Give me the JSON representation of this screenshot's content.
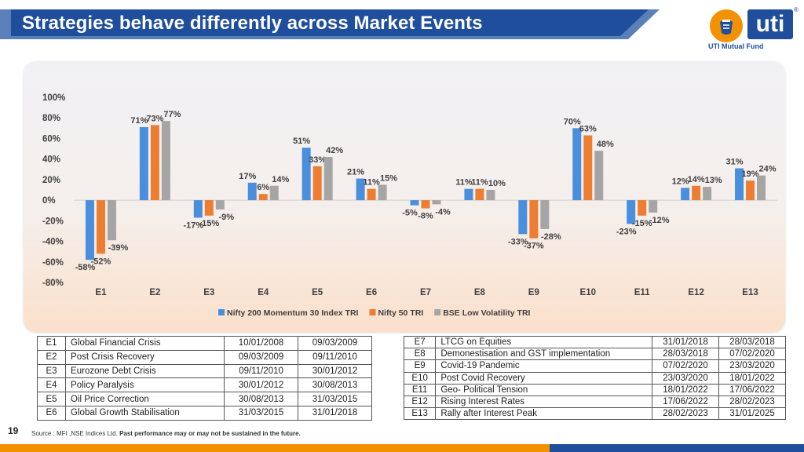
{
  "header": {
    "title": "Strategies behave differently across Market Events"
  },
  "logo": {
    "brand": "uti",
    "registered": "®",
    "name": "UTI Mutual Fund"
  },
  "colors": {
    "title_bar": "#1f4e9c",
    "series_1": "#4a8fdd",
    "series_2": "#ed7d31",
    "series_3": "#a5a5a5",
    "accent_orange": "#f39200"
  },
  "chart_data": {
    "type": "bar",
    "categories": [
      "E1",
      "E2",
      "E3",
      "E4",
      "E5",
      "E6",
      "E7",
      "E8",
      "E9",
      "E10",
      "E11",
      "E12",
      "E13"
    ],
    "series": [
      {
        "name": "Nifty 200 Momentum 30 Index TRI",
        "values": [
          -58,
          71,
          -17,
          17,
          51,
          21,
          -5,
          11,
          -33,
          70,
          -23,
          12,
          31
        ]
      },
      {
        "name": "Nifty 50 TRI",
        "values": [
          -52,
          73,
          -15,
          6,
          33,
          11,
          -8,
          11,
          -37,
          63,
          -15,
          14,
          19
        ]
      },
      {
        "name": "BSE Low Volatility TRI",
        "values": [
          -39,
          77,
          -9,
          14,
          42,
          15,
          -4,
          10,
          -28,
          48,
          -12,
          13,
          24
        ]
      }
    ],
    "data_labels": [
      [
        "-58%",
        "71%",
        "-17%",
        "17%",
        "51%",
        "21%",
        "-5%",
        "11%",
        "-33%",
        "70%",
        "-23%",
        "12%",
        "31%"
      ],
      [
        "-52%",
        "73%",
        "-15%",
        "6%",
        "33%",
        "11%",
        "-8%",
        "11%",
        "-37%",
        "63%",
        "-15%",
        "14%",
        "19%"
      ],
      [
        "-39%",
        "77%",
        "-9%",
        "14%",
        "42%",
        "15%",
        "-4%",
        "10%",
        "-28%",
        "48%",
        "-12%",
        "13%",
        "24%"
      ]
    ],
    "yticks": [
      "100%",
      "80%",
      "60%",
      "40%",
      "20%",
      "0%",
      "-20%",
      "-40%",
      "-60%",
      "-80%"
    ],
    "ylim": [
      -80,
      100
    ],
    "title": "",
    "xlabel": "",
    "ylabel": "",
    "grid": false,
    "legend": "bottom"
  },
  "events_left": [
    {
      "code": "E1",
      "name": "Global Financial Crisis",
      "start": "10/01/2008",
      "end": "09/03/2009"
    },
    {
      "code": "E2",
      "name": "Post Crisis Recovery",
      "start": "09/03/2009",
      "end": "09/11/2010"
    },
    {
      "code": "E3",
      "name": "Eurozone Debt Crisis",
      "start": "09/11/2010",
      "end": "30/01/2012"
    },
    {
      "code": "E4",
      "name": "Policy Paralysis",
      "start": "30/01/2012",
      "end": "30/08/2013"
    },
    {
      "code": "E5",
      "name": "Oil Price Correction",
      "start": "30/08/2013",
      "end": "31/03/2015"
    },
    {
      "code": "E6",
      "name": "Global Growth Stabilisation",
      "start": "31/03/2015",
      "end": "31/01/2018"
    }
  ],
  "events_right": [
    {
      "code": "E7",
      "name": "LTCG on Equities",
      "start": "31/01/2018",
      "end": "28/03/2018"
    },
    {
      "code": "E8",
      "name": "Demonestisation and GST implementation",
      "start": "28/03/2018",
      "end": "07/02/2020"
    },
    {
      "code": "E9",
      "name": "Covid-19 Pandemic",
      "start": "07/02/2020",
      "end": "23/03/2020"
    },
    {
      "code": "E10",
      "name": "Post Covid Recovery",
      "start": "23/03/2020",
      "end": "18/01/2022"
    },
    {
      "code": "E11",
      "name": "Geo- Political Tension",
      "start": "18/01/2022",
      "end": "17/06/2022"
    },
    {
      "code": "E12",
      "name": "Rising Interest Rates",
      "start": "17/06/2022",
      "end": "28/02/2023"
    },
    {
      "code": "E13",
      "name": "Rally after Interest Peak",
      "start": "28/02/2023",
      "end": "31/01/2025"
    }
  ],
  "footer": {
    "page_number": "19",
    "source_prefix": "Source : MFI ,NSE Indices Ltd.",
    "disclaimer": "Past performance may or may not be sustained in the future."
  }
}
